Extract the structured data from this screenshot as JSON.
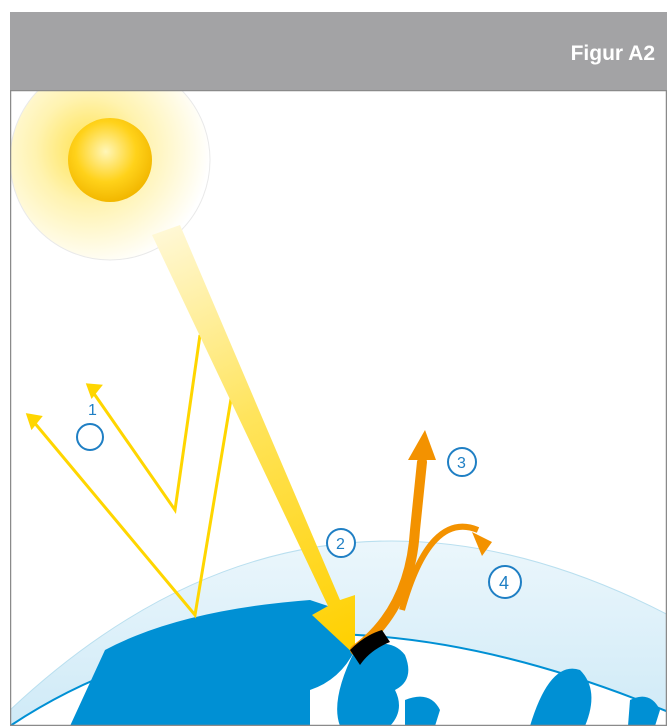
{
  "header": {
    "title": "Figur A2"
  },
  "labels": {
    "l1": "1",
    "l2": "2",
    "l3": "3",
    "l4": "4"
  },
  "colors": {
    "header_bg": "#a3a3a5",
    "sun_yellow": "#f5c400",
    "arrow_yellow": "#ffd600",
    "arrow_orange": "#f39200",
    "earth_blue": "#0090d4",
    "atmosphere": "#e3f3fb",
    "label_blue": "#1f7fc4",
    "border": "#8a8a8a"
  },
  "icons": [
    "sun-icon",
    "earth-icon",
    "atmosphere-layer",
    "circle-marker"
  ]
}
